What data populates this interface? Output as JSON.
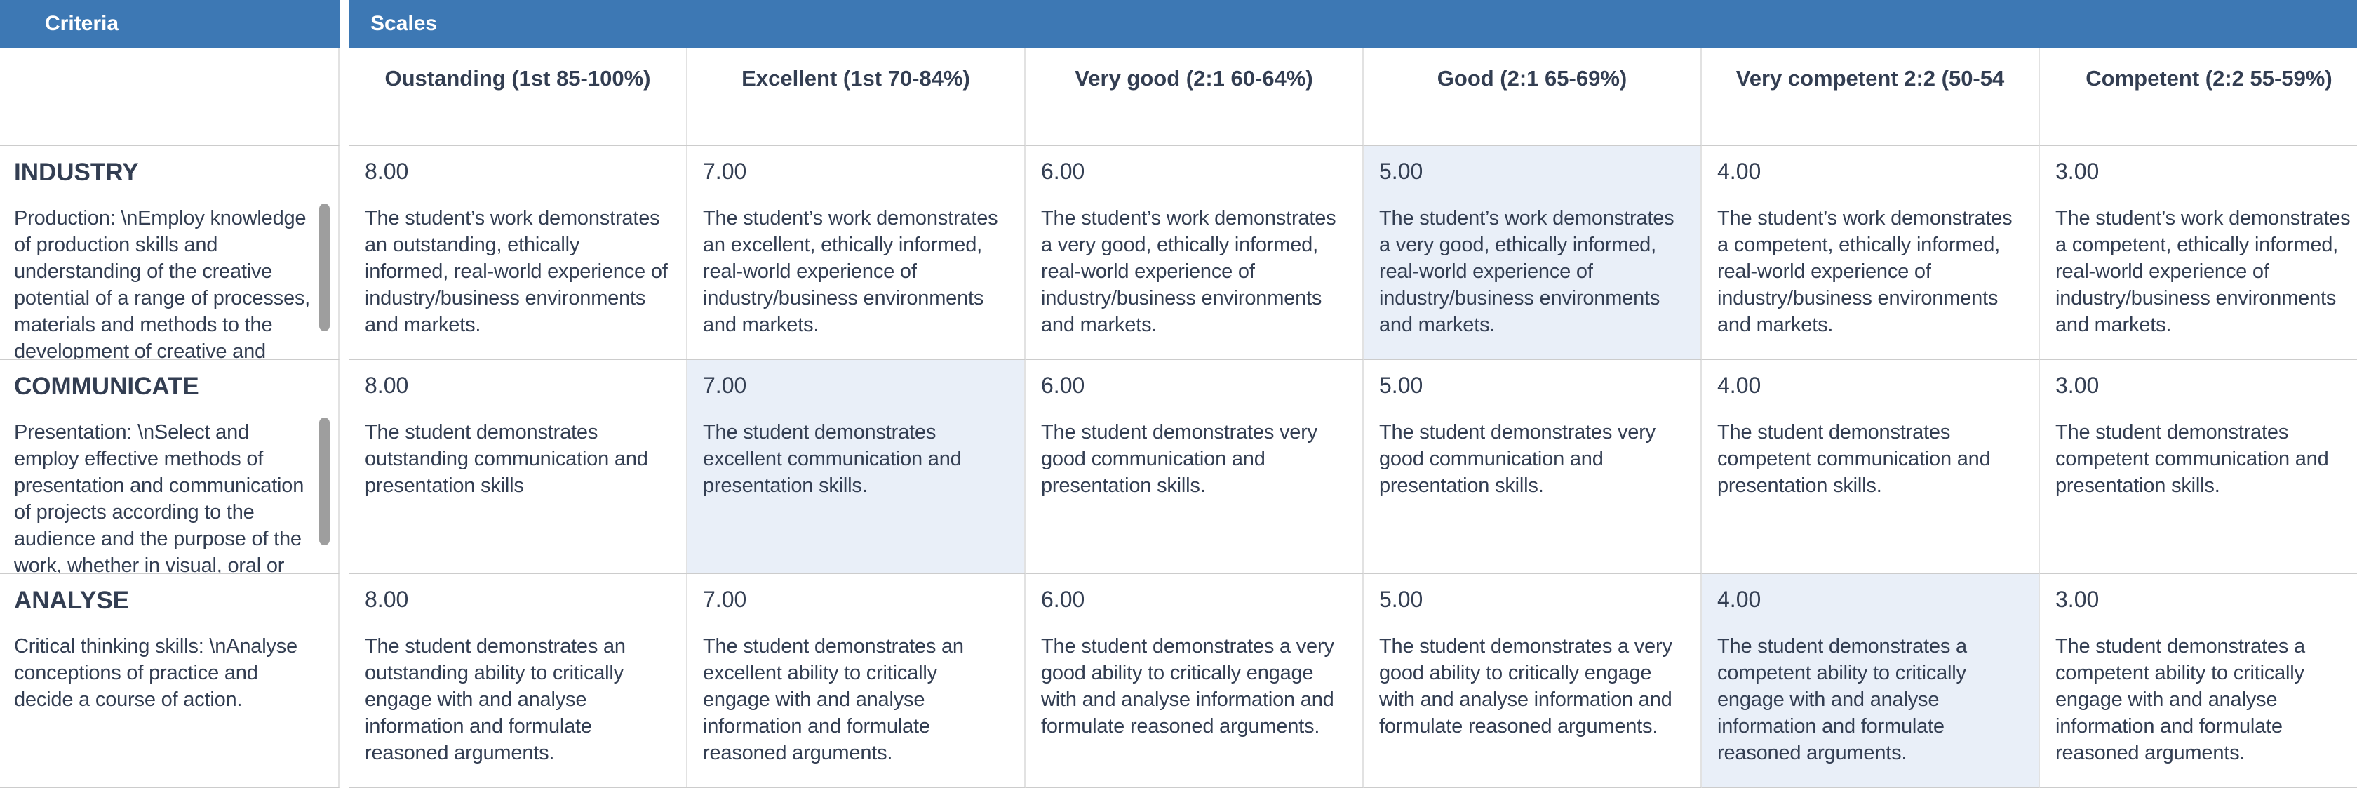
{
  "header": {
    "criteria_label": "Criteria",
    "scales_label": "Scales"
  },
  "scale_columns": [
    "Oustanding (1st 85-100%)",
    "Excellent (1st 70-84%)",
    "Very good (2:1 60-64%)",
    "Good (2:1 65-69%)",
    "Very competent 2:2 (50-54",
    "Competent (2:2 55-59%)"
  ],
  "criteria_rows": [
    {
      "title": "INDUSTRY",
      "description": "Production: \\nEmploy knowledge of production skills and understanding of the creative potential of a range of processes, materials and methods to the development of creative and academic practice",
      "scrollbar": true,
      "selected_index": 3,
      "cells": [
        {
          "score": "8.00",
          "text": "The student’s work demonstrates an outstanding, ethically informed, real-world experience of industry/business environments and markets."
        },
        {
          "score": "7.00",
          "text": "The student’s work demonstrates an excellent, ethically informed, real-world experience of industry/business environments and markets."
        },
        {
          "score": "6.00",
          "text": "The student’s work demonstrates a very good, ethically informed, real-world experience of industry/business environments and markets."
        },
        {
          "score": "5.00",
          "text": "The student’s work demonstrates a very good, ethically informed, real-world experience of industry/business environments and markets."
        },
        {
          "score": "4.00",
          "text": "The student’s work demonstrates a competent, ethically informed, real-world experience of industry/business environments and markets."
        },
        {
          "score": "3.00",
          "text": "The student’s work demonstrates a competent, ethically informed, real-world experience of industry/business environments and markets."
        }
      ]
    },
    {
      "title": "COMMUNICATE",
      "description": "Presentation: \\nSelect and employ effective methods of presentation and communication of projects according to the audience and the purpose of the work, whether in visual, oral or written form",
      "scrollbar": true,
      "selected_index": 1,
      "cells": [
        {
          "score": "8.00",
          "text": "The student demonstrates outstanding communication and presentation skills"
        },
        {
          "score": "7.00",
          "text": "The student demonstrates excellent communication and presentation skills."
        },
        {
          "score": "6.00",
          "text": "The student demonstrates very good communication and presentation skills."
        },
        {
          "score": "5.00",
          "text": "The student demonstrates very good communication and presentation skills."
        },
        {
          "score": "4.00",
          "text": "The student demonstrates competent communication and presentation skills."
        },
        {
          "score": "3.00",
          "text": "The student demonstrates competent communication and presentation skills."
        }
      ]
    },
    {
      "title": "ANALYSE",
      "description": "Critical thinking skills: \\nAnalyse conceptions of practice and decide a course of action.",
      "scrollbar": false,
      "selected_index": 4,
      "cells": [
        {
          "score": "8.00",
          "text": "The student demonstrates an outstanding ability to critically engage with and analyse information and formulate reasoned arguments."
        },
        {
          "score": "7.00",
          "text": "The student demonstrates an excellent ability to critically engage with and analyse information and formulate reasoned arguments."
        },
        {
          "score": "6.00",
          "text": "The student demonstrates a very good ability to critically engage with and analyse information and formulate reasoned arguments."
        },
        {
          "score": "5.00",
          "text": "The student demonstrates a very good ability to critically engage with and analyse information and formulate reasoned arguments."
        },
        {
          "score": "4.00",
          "text": "The student demonstrates a competent ability to critically engage with and analyse information and formulate reasoned arguments."
        },
        {
          "score": "3.00",
          "text": "The student demonstrates a competent ability to critically engage with and analyse information and formulate reasoned arguments."
        }
      ]
    }
  ],
  "colors": {
    "header_blue": "#3d78b4",
    "header_text": "#ffffff",
    "text": "#333e52",
    "selected_cell_bg": "#e9eff8",
    "column_border": "#e2e2e2",
    "row_border": "#cccccc",
    "scrollbar": "#9e9e9e",
    "background": "#ffffff"
  }
}
